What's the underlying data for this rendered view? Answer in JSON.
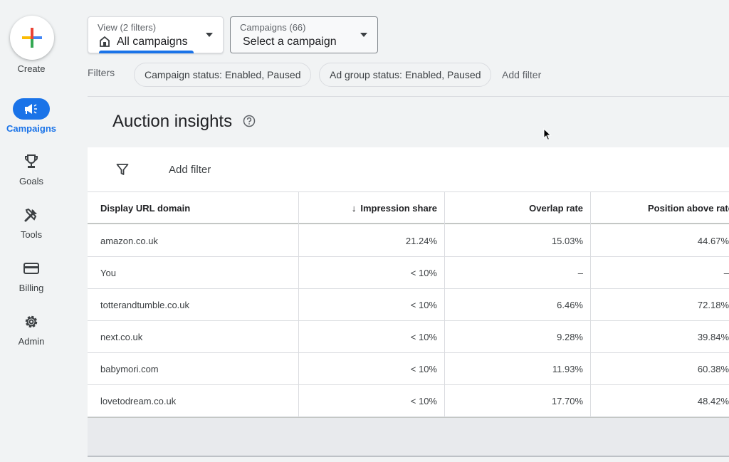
{
  "nav": {
    "create_label": "Create",
    "items": [
      {
        "label": "Campaigns",
        "icon": "campaigns-icon",
        "active": true
      },
      {
        "label": "Goals",
        "icon": "trophy-icon",
        "active": false
      },
      {
        "label": "Tools",
        "icon": "tools-icon",
        "active": false
      },
      {
        "label": "Billing",
        "icon": "credit-card-icon",
        "active": false
      },
      {
        "label": "Admin",
        "icon": "gear-icon",
        "active": false
      }
    ]
  },
  "view_selector": {
    "small": "View (2 filters)",
    "value": "All campaigns"
  },
  "campaign_selector": {
    "small": "Campaigns (66)",
    "value": "Select a campaign"
  },
  "filters": {
    "label": "Filters",
    "chips": [
      "Campaign status: Enabled, Paused",
      "Ad group status: Enabled, Paused"
    ],
    "add_filter": "Add filter"
  },
  "page": {
    "title": "Auction insights"
  },
  "table": {
    "add_filter": "Add filter",
    "columns": [
      "Display URL domain",
      "Impression share",
      "Overlap rate",
      "Position above rate"
    ],
    "rows": [
      {
        "domain": "amazon.co.uk",
        "impression_share": "21.24%",
        "overlap_rate": "15.03%",
        "position_above_rate": "44.67%"
      },
      {
        "domain": "You",
        "impression_share": "< 10%",
        "overlap_rate": "–",
        "position_above_rate": "–"
      },
      {
        "domain": "totterandtumble.co.uk",
        "impression_share": "< 10%",
        "overlap_rate": "6.46%",
        "position_above_rate": "72.18%"
      },
      {
        "domain": "next.co.uk",
        "impression_share": "< 10%",
        "overlap_rate": "9.28%",
        "position_above_rate": "39.84%"
      },
      {
        "domain": "babymori.com",
        "impression_share": "< 10%",
        "overlap_rate": "11.93%",
        "position_above_rate": "60.38%"
      },
      {
        "domain": "lovetodream.co.uk",
        "impression_share": "< 10%",
        "overlap_rate": "17.70%",
        "position_above_rate": "48.42%"
      }
    ]
  },
  "colors": {
    "accent": "#1a73e8",
    "background": "#f1f3f4"
  }
}
